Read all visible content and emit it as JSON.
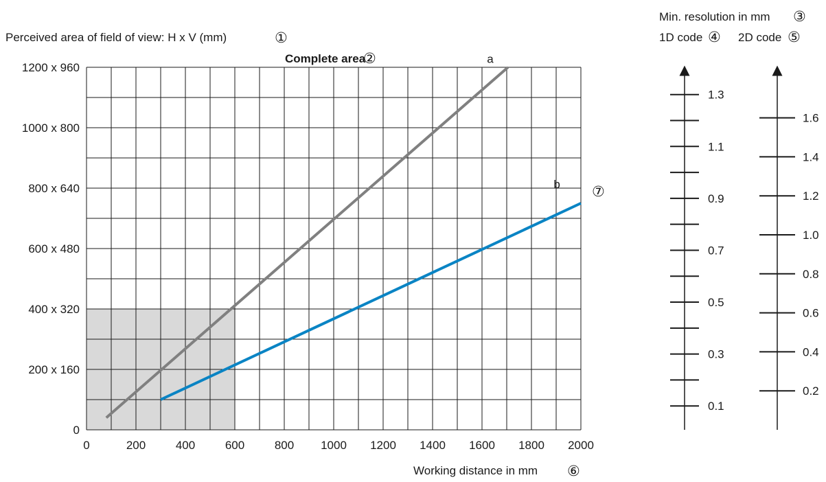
{
  "chart_data": {
    "type": "line",
    "y_title": "Perceived area of field of view: H x V (mm)",
    "y_title_marker": "①",
    "plot_title": "Complete area",
    "plot_title_marker": "②",
    "x_title": "Working distance in mm",
    "x_title_marker": "⑥",
    "line_marker": "⑦",
    "xlim": [
      0,
      2000
    ],
    "ylim": [
      0,
      1200
    ],
    "x_ticks": [
      0,
      200,
      400,
      600,
      800,
      1000,
      1200,
      1400,
      1600,
      1800,
      2000
    ],
    "y_ticks": [
      0,
      200,
      400,
      600,
      800,
      1000,
      1200
    ],
    "y_tick_labels": [
      "0",
      "200 x 160",
      "400 x 320",
      "600 x 480",
      "800 x 640",
      "1000 x 800",
      "1200 x 960"
    ],
    "grid": true,
    "highlight_region": {
      "x": [
        0,
        600
      ],
      "y": [
        0,
        400
      ],
      "color": "#d9d9d9"
    },
    "series": [
      {
        "name": "a",
        "color": "#808080",
        "points": [
          [
            80,
            40
          ],
          [
            1705,
            1200
          ]
        ]
      },
      {
        "name": "b",
        "color": "#0a84c4",
        "points": [
          [
            300,
            100
          ],
          [
            2000,
            750
          ]
        ]
      }
    ],
    "resolution_scales": {
      "title": "Min. resolution in mm",
      "title_marker": "③",
      "scales": [
        {
          "name": "1D code",
          "marker": "④",
          "range": [
            0,
            1.4
          ],
          "labels": [
            "1.3",
            "1.1",
            "0.9",
            "0.7",
            "0.5",
            "0.3",
            "0.1"
          ],
          "label_values": [
            1.3,
            1.1,
            0.9,
            0.7,
            0.5,
            0.3,
            0.1
          ],
          "minor_values": [
            1.2,
            1.0,
            0.8,
            0.6,
            0.4,
            0.2
          ]
        },
        {
          "name": "2D code",
          "marker": "⑤",
          "range": [
            0,
            1.8
          ],
          "labels": [
            "1.6",
            "1.4",
            "1.2",
            "1.0",
            "0.8",
            "0.6",
            "0.4",
            "0.2"
          ],
          "label_values": [
            1.6,
            1.4,
            1.2,
            1.0,
            0.8,
            0.6,
            0.4,
            0.2
          ]
        }
      ]
    }
  }
}
